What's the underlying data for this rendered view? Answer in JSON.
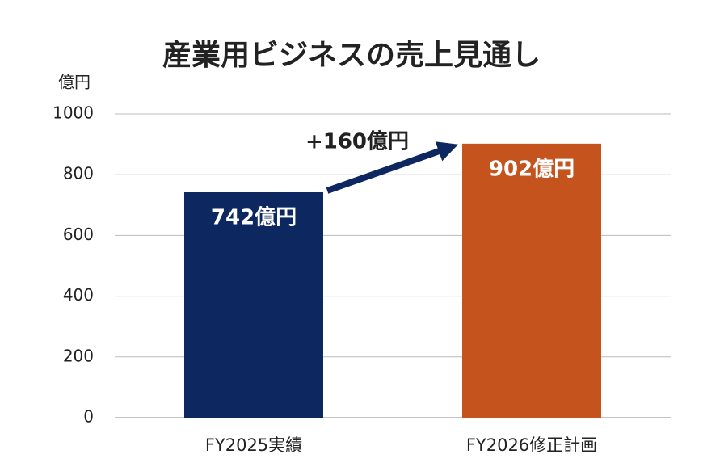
{
  "chart_data": {
    "type": "bar",
    "title": "産業用ビジネスの売上見通し",
    "y_label": "億円",
    "categories": [
      "FY2025実績",
      "FY2026修正計画"
    ],
    "values": [
      742,
      902
    ],
    "value_labels": [
      "742億円",
      "902億円"
    ],
    "colors": [
      "#0d2761",
      "#c4531e"
    ],
    "annotation": "+160億円",
    "ylim": [
      0,
      1000
    ],
    "yticks": [
      0,
      200,
      400,
      600,
      800,
      1000
    ],
    "grid": true
  }
}
